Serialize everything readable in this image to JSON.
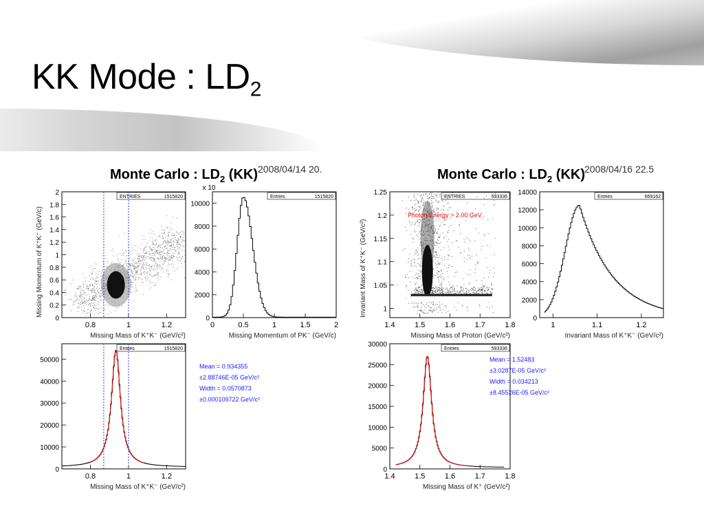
{
  "slide_title_main": "KK Mode : LD",
  "slide_title_sub": "2",
  "panels": [
    {
      "header_main": "Monte Carlo : LD",
      "header_sub": "2",
      "header_tail": " (KK)",
      "timestamp": "2008/04/14   20.",
      "stats": [
        "Mean = 0.934355",
        "±2.88746E-05 GeV/c²",
        "Width = 0.0570873",
        "±0.000109722 GeV/c²"
      ]
    },
    {
      "header_main": "Monte Carlo : LD",
      "header_sub": "2",
      "header_tail": " (KK)",
      "timestamp": "2008/04/16   22.5",
      "stats": [
        "Mean = 1.52483",
        "±3.0287E-05 GeV/c²",
        "Width = 0.034213",
        "±8.45526E-05 GeV/c²"
      ]
    }
  ],
  "chart_data": [
    {
      "id": "p1",
      "type": "scatter",
      "entries_label": "ENTRIES",
      "entries": "1515820",
      "xlabel": "Missing Mass of K⁺K⁻ (GeV/c²)",
      "ylabel": "Missing Momentum of K⁺K⁻ (GeV/c)",
      "xlim": [
        0.65,
        1.3
      ],
      "ylim": [
        0,
        2
      ],
      "xticks": [
        0.8,
        1,
        1.2
      ],
      "xticklabels": [
        "0.8",
        "1",
        "1.2"
      ],
      "yticks": [
        0,
        0.2,
        0.4,
        0.6,
        0.8,
        1,
        1.2,
        1.4,
        1.6,
        1.8,
        2
      ],
      "yticklabels": [
        "0",
        "0.2",
        "0.4",
        "0.6",
        "0.8",
        "1",
        "1.2",
        "1.4",
        "1.6",
        "1.8",
        "2"
      ],
      "cut_lines": [
        0.87,
        1.0
      ],
      "core": {
        "x": 0.934,
        "y": 0.52
      },
      "colors": {
        "points": "#555555",
        "cut": "#2a3ad8"
      }
    },
    {
      "id": "p2",
      "type": "line",
      "entries_label": "Entries",
      "entries": "1515820",
      "xlabel": "Missing Momentum of PK⁻ (GeV/c)",
      "ylabel": "",
      "multiplier": "x 10",
      "xlim": [
        0,
        2
      ],
      "ylim": [
        0,
        11000
      ],
      "xticks": [
        0,
        0.5,
        1,
        1.5,
        2
      ],
      "xticklabels": [
        "0",
        "0.5",
        "1",
        "1.5",
        "2"
      ],
      "yticks": [
        0,
        2000,
        4000,
        6000,
        8000,
        10000
      ],
      "yticklabels": [
        "0",
        "2000",
        "4000",
        "6000",
        "8000",
        "10000"
      ],
      "peak": {
        "x": 0.5,
        "y": 10500,
        "sigma_left": 0.1,
        "sigma_right": 0.15,
        "floor": 40
      }
    },
    {
      "id": "p3",
      "type": "line",
      "entries_label": "Entries",
      "entries": "1515820",
      "xlabel": "Missing Mass of K⁺K⁻ (GeV/c²)",
      "xlim": [
        0.65,
        1.3
      ],
      "ylim": [
        0,
        57000
      ],
      "xticks": [
        0.8,
        1,
        1.2
      ],
      "xticklabels": [
        "0.8",
        "1",
        "1.2"
      ],
      "yticks": [
        0,
        10000,
        20000,
        30000,
        40000,
        50000
      ],
      "yticklabels": [
        "0",
        "10000",
        "20000",
        "30000",
        "40000",
        "50000"
      ],
      "peak": {
        "x": 0.934,
        "y": 54000,
        "width": 0.0571,
        "floor": 800
      },
      "cut_lines": [
        0.87,
        1.0
      ],
      "colors": {
        "histogram": "#000000",
        "fit": "#e01010",
        "cut": "#2a3ad8"
      }
    },
    {
      "id": "p4",
      "type": "scatter",
      "entries_label": "ENTRIES",
      "entries": "593336",
      "xlabel": "Missing Mass of Proton (GeV/c²)",
      "ylabel": "Invariant Mass of K⁺K⁻ (GeV/c²)",
      "annotation": "Photon Energy > 2.00 GeV",
      "xlim": [
        1.4,
        1.8
      ],
      "ylim": [
        0.98,
        1.25
      ],
      "xticks": [
        1.4,
        1.5,
        1.6,
        1.7,
        1.8
      ],
      "xticklabels": [
        "1.4",
        "1.5",
        "1.6",
        "1.7",
        "1.8"
      ],
      "yticks": [
        1,
        1.05,
        1.1,
        1.15,
        1.2,
        1.25
      ],
      "yticklabels": [
        "1",
        "1.05",
        "1.1",
        "1.15",
        "1.2",
        "1.25"
      ],
      "band": {
        "x": 1.525,
        "y": 1.02
      },
      "colors": {
        "points": "#333333",
        "annotation": "#e01010"
      }
    },
    {
      "id": "p5",
      "type": "line",
      "entries_label": "Entries",
      "entries": "669162",
      "xlabel": "Invariant Mass of K⁺K⁻ (GeV/c²)",
      "xlim": [
        0.97,
        1.25
      ],
      "ylim": [
        0,
        14000
      ],
      "xticks": [
        1,
        1.1,
        1.2
      ],
      "xticklabels": [
        "1",
        "1.1",
        "1.2"
      ],
      "yticks": [
        0,
        2000,
        4000,
        6000,
        8000,
        10000,
        12000,
        14000
      ],
      "yticklabels": [
        "0",
        "2000",
        "4000",
        "6000",
        "8000",
        "10000",
        "12000",
        "14000"
      ],
      "peak": {
        "x": 1.06,
        "y": 12500
      }
    },
    {
      "id": "p6",
      "type": "line",
      "entries_label": "Entries",
      "entries": "593336",
      "xlabel": "Missing Mass of K⁺ (GeV/c²)",
      "xlim": [
        1.4,
        1.8
      ],
      "ylim": [
        0,
        30000
      ],
      "xticks": [
        1.4,
        1.5,
        1.6,
        1.7,
        1.8
      ],
      "xticklabels": [
        "1.4",
        "1.5",
        "1.6",
        "1.7",
        "1.8"
      ],
      "yticks": [
        0,
        5000,
        10000,
        15000,
        20000,
        25000,
        30000
      ],
      "yticklabels": [
        "0",
        "5000",
        "10000",
        "15000",
        "20000",
        "25000",
        "30000"
      ],
      "peak": {
        "x": 1.5248,
        "y": 27000,
        "width": 0.0342,
        "floor": 300
      },
      "colors": {
        "histogram": "#000000",
        "fit": "#e01010"
      }
    }
  ]
}
